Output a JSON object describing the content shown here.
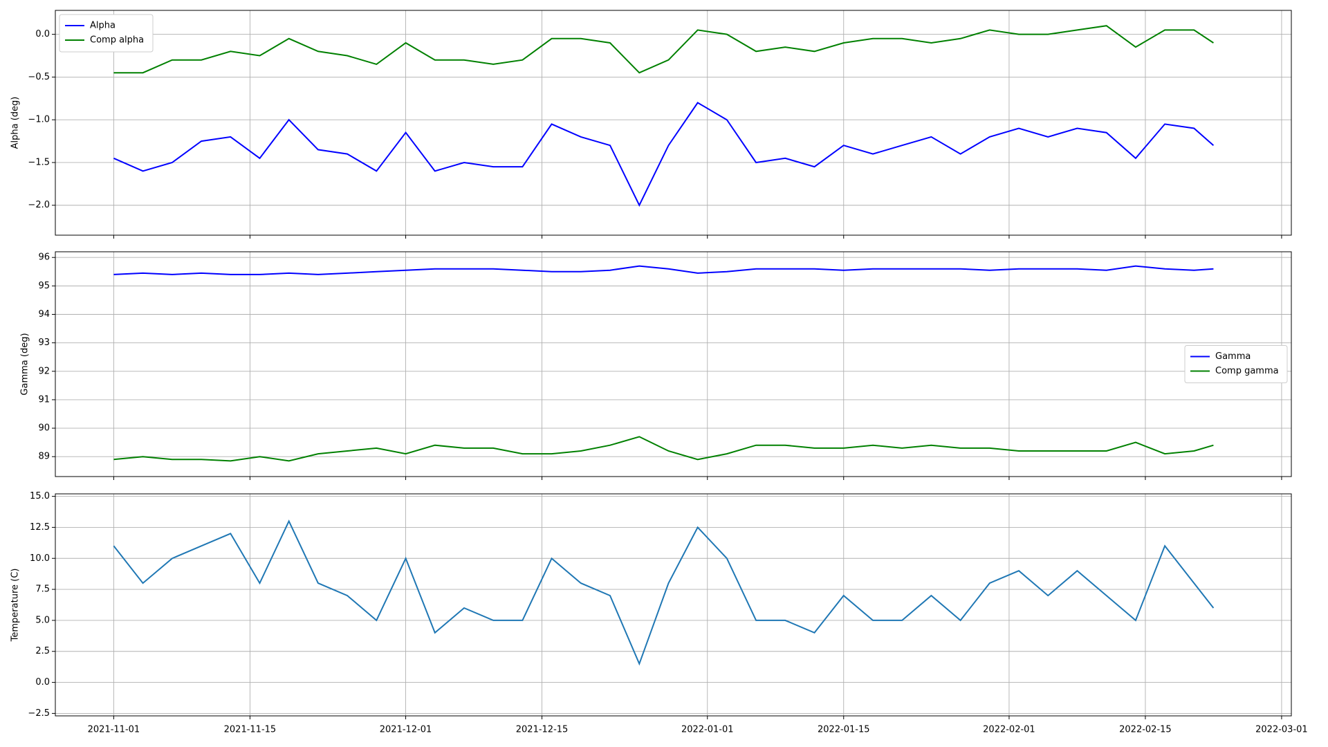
{
  "chart_data": [
    {
      "type": "line",
      "ylabel": "Alpha (deg)",
      "legend": "upper left",
      "grid": true,
      "x": [
        "2021-11-01",
        "2021-11-04",
        "2021-11-07",
        "2021-11-10",
        "2021-11-13",
        "2021-11-16",
        "2021-11-19",
        "2021-11-22",
        "2021-11-25",
        "2021-11-28",
        "2021-12-01",
        "2021-12-04",
        "2021-12-07",
        "2021-12-10",
        "2021-12-13",
        "2021-12-16",
        "2021-12-19",
        "2021-12-22",
        "2021-12-25",
        "2021-12-28",
        "2021-12-31",
        "2022-01-03",
        "2022-01-06",
        "2022-01-09",
        "2022-01-12",
        "2022-01-15",
        "2022-01-18",
        "2022-01-21",
        "2022-01-24",
        "2022-01-27",
        "2022-01-30",
        "2022-02-02",
        "2022-02-05",
        "2022-02-08",
        "2022-02-11",
        "2022-02-14",
        "2022-02-17",
        "2022-02-20",
        "2022-02-22"
      ],
      "xlim": [
        "2021-10-26",
        "2022-03-02"
      ],
      "ylim": [
        -2.35,
        0.28
      ],
      "yticks": [
        {
          "value": -2,
          "label": "−2.0"
        },
        {
          "value": -1.5,
          "label": "−1.5"
        },
        {
          "value": -1,
          "label": "−1.0"
        },
        {
          "value": -0.5,
          "label": "−0.5"
        },
        {
          "value": 0,
          "label": "0.0"
        }
      ],
      "series": [
        {
          "name": "Alpha",
          "color": "#0000ff",
          "values": [
            -1.45,
            -1.6,
            -1.5,
            -1.25,
            -1.2,
            -1.45,
            -1.0,
            -1.35,
            -1.4,
            -1.6,
            -1.15,
            -1.6,
            -1.5,
            -1.55,
            -1.55,
            -1.05,
            -1.2,
            -1.3,
            -2.0,
            -1.3,
            -0.8,
            -1.0,
            -1.5,
            -1.45,
            -1.55,
            -1.3,
            -1.4,
            -1.3,
            -1.2,
            -1.4,
            -1.2,
            -1.1,
            -1.2,
            -1.1,
            -1.15,
            -1.45,
            -1.05,
            -1.1,
            -1.3
          ]
        },
        {
          "name": "Comp alpha",
          "color": "#008000",
          "values": [
            -0.45,
            -0.45,
            -0.3,
            -0.3,
            -0.2,
            -0.25,
            -0.05,
            -0.2,
            -0.25,
            -0.35,
            -0.1,
            -0.3,
            -0.3,
            -0.35,
            -0.3,
            -0.05,
            -0.05,
            -0.1,
            -0.45,
            -0.3,
            0.05,
            0.0,
            -0.2,
            -0.15,
            -0.2,
            -0.1,
            -0.05,
            -0.05,
            -0.1,
            -0.05,
            0.05,
            0.0,
            0.0,
            0.05,
            0.1,
            -0.15,
            0.05,
            0.05,
            -0.1
          ]
        }
      ]
    },
    {
      "type": "line",
      "ylabel": "Gamma (deg)",
      "legend": "center right",
      "grid": true,
      "x": [
        "2021-11-01",
        "2021-11-04",
        "2021-11-07",
        "2021-11-10",
        "2021-11-13",
        "2021-11-16",
        "2021-11-19",
        "2021-11-22",
        "2021-11-25",
        "2021-11-28",
        "2021-12-01",
        "2021-12-04",
        "2021-12-07",
        "2021-12-10",
        "2021-12-13",
        "2021-12-16",
        "2021-12-19",
        "2021-12-22",
        "2021-12-25",
        "2021-12-28",
        "2021-12-31",
        "2022-01-03",
        "2022-01-06",
        "2022-01-09",
        "2022-01-12",
        "2022-01-15",
        "2022-01-18",
        "2022-01-21",
        "2022-01-24",
        "2022-01-27",
        "2022-01-30",
        "2022-02-02",
        "2022-02-05",
        "2022-02-08",
        "2022-02-11",
        "2022-02-14",
        "2022-02-17",
        "2022-02-20",
        "2022-02-22"
      ],
      "xlim": [
        "2021-10-26",
        "2022-03-02"
      ],
      "ylim": [
        88.3,
        96.2
      ],
      "yticks": [
        89,
        90,
        91,
        92,
        93,
        94,
        95,
        96
      ],
      "series": [
        {
          "name": "Gamma",
          "color": "#0000ff",
          "values": [
            95.4,
            95.45,
            95.4,
            95.45,
            95.4,
            95.4,
            95.45,
            95.4,
            95.45,
            95.5,
            95.55,
            95.6,
            95.6,
            95.6,
            95.55,
            95.5,
            95.5,
            95.55,
            95.7,
            95.6,
            95.45,
            95.5,
            95.6,
            95.6,
            95.6,
            95.55,
            95.6,
            95.6,
            95.6,
            95.6,
            95.55,
            95.6,
            95.6,
            95.6,
            95.55,
            95.7,
            95.6,
            95.55,
            95.6
          ]
        },
        {
          "name": "Comp gamma",
          "color": "#008000",
          "values": [
            88.9,
            89.0,
            88.9,
            88.9,
            88.85,
            89.0,
            88.85,
            89.1,
            89.2,
            89.3,
            89.1,
            89.4,
            89.3,
            89.3,
            89.1,
            89.1,
            89.2,
            89.4,
            89.7,
            89.2,
            88.9,
            89.1,
            89.4,
            89.4,
            89.3,
            89.3,
            89.4,
            89.3,
            89.4,
            89.3,
            89.3,
            89.2,
            89.2,
            89.2,
            89.2,
            89.5,
            89.1,
            89.2,
            89.4
          ]
        }
      ]
    },
    {
      "type": "line",
      "ylabel": "Temperature (C)",
      "grid": true,
      "x": [
        "2021-11-01",
        "2021-11-04",
        "2021-11-07",
        "2021-11-10",
        "2021-11-13",
        "2021-11-16",
        "2021-11-19",
        "2021-11-22",
        "2021-11-25",
        "2021-11-28",
        "2021-12-01",
        "2021-12-04",
        "2021-12-07",
        "2021-12-10",
        "2021-12-13",
        "2021-12-16",
        "2021-12-19",
        "2021-12-22",
        "2021-12-25",
        "2021-12-28",
        "2021-12-31",
        "2022-01-03",
        "2022-01-06",
        "2022-01-09",
        "2022-01-12",
        "2022-01-15",
        "2022-01-18",
        "2022-01-21",
        "2022-01-24",
        "2022-01-27",
        "2022-01-30",
        "2022-02-02",
        "2022-02-05",
        "2022-02-08",
        "2022-02-11",
        "2022-02-14",
        "2022-02-17",
        "2022-02-20",
        "2022-02-22"
      ],
      "xlim": [
        "2021-10-26",
        "2022-03-02"
      ],
      "xticks": [
        "2021-11-01",
        "2021-11-15",
        "2021-12-01",
        "2021-12-15",
        "2022-01-01",
        "2022-01-15",
        "2022-02-01",
        "2022-02-15",
        "2022-03-01"
      ],
      "ylim": [
        -2.7,
        15.2
      ],
      "yticks": [
        {
          "value": -2.5,
          "label": "−2.5"
        },
        {
          "value": 0,
          "label": "0.0"
        },
        {
          "value": 2.5,
          "label": "2.5"
        },
        {
          "value": 5,
          "label": "5.0"
        },
        {
          "value": 7.5,
          "label": "7.5"
        },
        {
          "value": 10,
          "label": "10.0"
        },
        {
          "value": 12.5,
          "label": "12.5"
        },
        {
          "value": 15,
          "label": "15.0"
        }
      ],
      "color": "#1f77b4",
      "values": [
        11,
        8,
        10,
        11,
        12,
        8,
        13,
        8,
        7,
        5,
        10,
        4,
        6,
        5,
        5,
        10,
        8,
        7,
        1.5,
        8,
        12.5,
        10,
        5,
        5,
        4,
        7,
        5,
        5,
        7,
        5,
        8,
        9,
        7,
        9,
        7,
        5,
        11,
        8,
        6
      ]
    }
  ]
}
